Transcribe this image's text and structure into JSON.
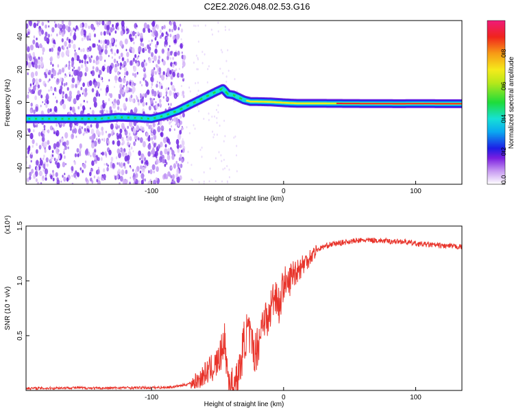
{
  "title": "C2E2.2026.048.02.53.G16",
  "chart_data": [
    {
      "type": "heatmap",
      "id": "spectrogram",
      "xlabel": "Height of straight line (km)",
      "ylabel": "Frequency (Hz)",
      "xlim": [
        -195,
        135
      ],
      "ylim": [
        -50,
        50
      ],
      "xticks": [
        -100,
        0,
        100
      ],
      "yticks": [
        -40,
        -20,
        0,
        20,
        40
      ],
      "ridge": {
        "x": [
          -195,
          -180,
          -160,
          -140,
          -125,
          -110,
          -100,
          -90,
          -80,
          -70,
          -60,
          -55,
          -50,
          -46,
          -42,
          -38,
          -34,
          -30,
          -25,
          -20,
          -10,
          0,
          10,
          30,
          60,
          90,
          100,
          120,
          135
        ],
        "freq": [
          -10,
          -10,
          -10,
          -10,
          -9,
          -9.5,
          -10,
          -8,
          -5,
          -1,
          3,
          5,
          7,
          8.5,
          5,
          4.5,
          3,
          1.5,
          0.5,
          0.5,
          0.3,
          -0.2,
          -0.6,
          -0.6,
          -0.7,
          -0.8,
          -0.7,
          -0.8,
          -0.8
        ]
      },
      "colorbar": {
        "label": "Normalized spectral amplitude",
        "range": [
          0,
          1
        ],
        "ticks": [
          "0.0",
          "0.2",
          "0.4",
          "0.6",
          "0.8"
        ]
      }
    },
    {
      "type": "line",
      "id": "snr",
      "xlabel": "Height of straight line (km)",
      "ylabel": "SNR (10 * v/v)",
      "scale_label": "(x10⁴)",
      "xlim": [
        -195,
        135
      ],
      "ylim": [
        0,
        1.5
      ],
      "xticks": [
        -100,
        0,
        100
      ],
      "yticks": [
        "0.5",
        "1.0",
        "1.5"
      ],
      "color": "#e8332a",
      "series": [
        {
          "name": "SNR",
          "x": [
            -195,
            -180,
            -160,
            -140,
            -120,
            -100,
            -85,
            -75,
            -65,
            -58,
            -52,
            -48,
            -45,
            -42,
            -39,
            -36,
            -33,
            -30,
            -27,
            -24,
            -21,
            -18,
            -15,
            -12,
            -9,
            -6,
            -3,
            0,
            3,
            6,
            10,
            15,
            20,
            25,
            30,
            35,
            40,
            50,
            60,
            70,
            80,
            90,
            95,
            100,
            110,
            120,
            135
          ],
          "values": [
            0.02,
            0.02,
            0.025,
            0.02,
            0.025,
            0.025,
            0.03,
            0.05,
            0.09,
            0.17,
            0.22,
            0.3,
            0.48,
            0.12,
            0.04,
            0.05,
            0.2,
            0.45,
            0.55,
            0.4,
            0.35,
            0.5,
            0.7,
            0.6,
            0.8,
            0.9,
            0.75,
            1.0,
            0.95,
            1.05,
            1.1,
            1.15,
            1.22,
            1.28,
            1.31,
            1.33,
            1.34,
            1.36,
            1.37,
            1.37,
            1.36,
            1.36,
            1.35,
            1.34,
            1.33,
            1.32,
            1.31
          ]
        }
      ]
    }
  ]
}
